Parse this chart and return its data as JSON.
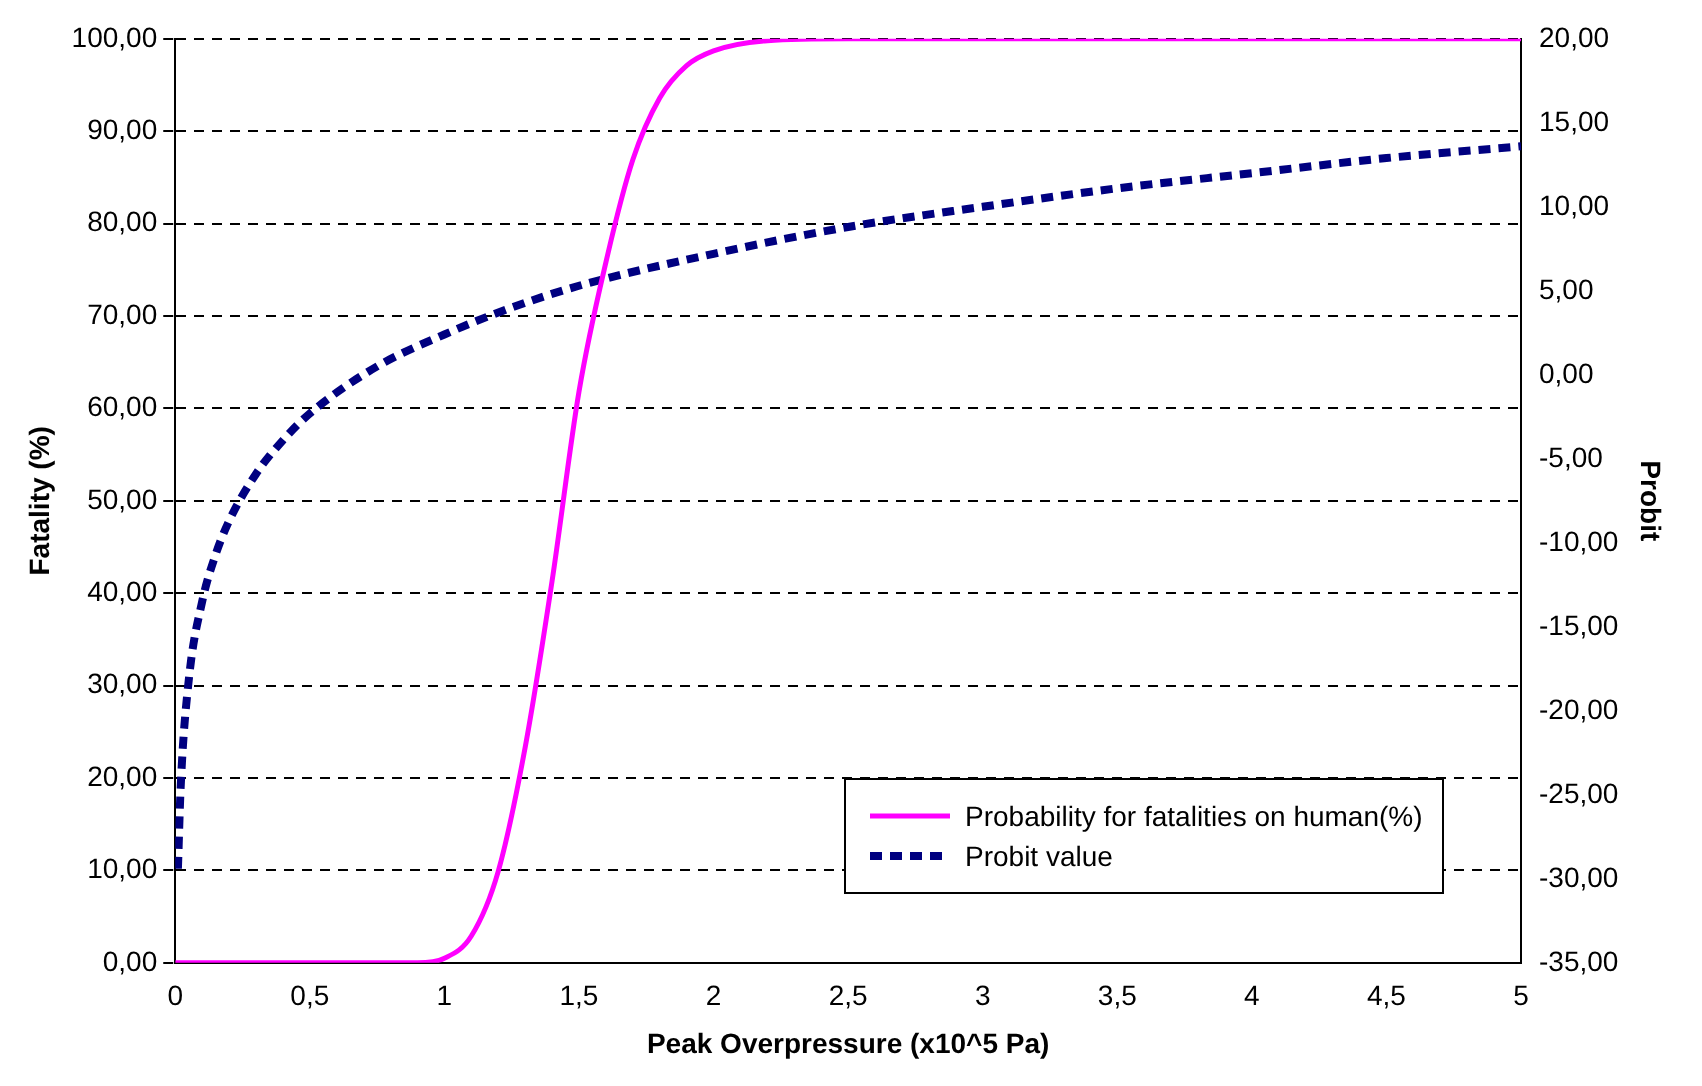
{
  "chart_data": {
    "type": "line",
    "xlabel": "Peak Overpressure (x10^5 Pa)",
    "ylabel": "Fatality (%)",
    "y2label": "Probit",
    "xlim": [
      0,
      5
    ],
    "xticks": [
      0,
      {
        "value": 0.5,
        "label": "0,5"
      },
      1,
      {
        "value": 1.5,
        "label": "1,5"
      },
      2,
      {
        "value": 2.5,
        "label": "2,5"
      },
      3,
      {
        "value": 3.5,
        "label": "3,5"
      },
      4,
      {
        "value": 4.5,
        "label": "4,5"
      },
      5
    ],
    "ylim": [
      0,
      100
    ],
    "yticks": [
      {
        "value": 0,
        "label": "0,00"
      },
      {
        "value": 10,
        "label": "10,00"
      },
      {
        "value": 20,
        "label": "20,00"
      },
      {
        "value": 30,
        "label": "30,00"
      },
      {
        "value": 40,
        "label": "40,00"
      },
      {
        "value": 50,
        "label": "50,00"
      },
      {
        "value": 60,
        "label": "60,00"
      },
      {
        "value": 70,
        "label": "70,00"
      },
      {
        "value": 80,
        "label": "80,00"
      },
      {
        "value": 90,
        "label": "90,00"
      },
      {
        "value": 100,
        "label": "100,00"
      }
    ],
    "y2lim": [
      -35,
      20
    ],
    "y2ticks": [
      {
        "value": -35,
        "label": "-35,00"
      },
      {
        "value": -30,
        "label": "-30,00"
      },
      {
        "value": -25,
        "label": "-25,00"
      },
      {
        "value": -20,
        "label": "-20,00"
      },
      {
        "value": -15,
        "label": "-15,00"
      },
      {
        "value": -10,
        "label": "-10,00"
      },
      {
        "value": -5,
        "label": "-5,00"
      },
      {
        "value": 0,
        "label": "0,00"
      },
      {
        "value": 5,
        "label": "5,00"
      },
      {
        "value": 10,
        "label": "10,00"
      },
      {
        "value": 15,
        "label": "15,00"
      },
      {
        "value": 20,
        "label": "20,00"
      }
    ],
    "grid": "y",
    "legend": "bottom right",
    "marker": "none",
    "series": [
      {
        "name": "Probability for fatalities on human(%)",
        "color": "#ff00ff",
        "line_style": "solid",
        "x": [
          0,
          0.5,
          0.9,
          1.0,
          1.1,
          1.2,
          1.3,
          1.4,
          1.5,
          1.6,
          1.7,
          1.8,
          1.9,
          2.0,
          2.2,
          2.5,
          3,
          4,
          5
        ],
        "values": [
          0,
          0,
          0,
          0.5,
          2.9,
          9.9,
          23.3,
          41.3,
          61.8,
          75.8,
          86.9,
          93.6,
          97.1,
          98.7,
          99.8,
          100,
          100,
          100,
          100
        ]
      },
      {
        "name": "Probit value",
        "color": "#000080",
        "line_style": "dashed",
        "axis": "y2",
        "x": [
          0.01,
          0.02,
          0.05,
          0.1,
          0.15,
          0.2,
          0.3,
          0.4,
          0.5,
          0.75,
          1,
          1.25,
          1.5,
          2,
          2.5,
          3,
          3.5,
          4,
          4.5,
          5
        ],
        "values": [
          -29.4,
          -24.6,
          -18.2,
          -13.5,
          -10.7,
          -8.7,
          -5.9,
          -3.9,
          -2.3,
          0.5,
          2.4,
          4.0,
          5.3,
          7.2,
          8.8,
          10.0,
          11.1,
          12.0,
          12.9,
          13.6
        ]
      }
    ]
  }
}
